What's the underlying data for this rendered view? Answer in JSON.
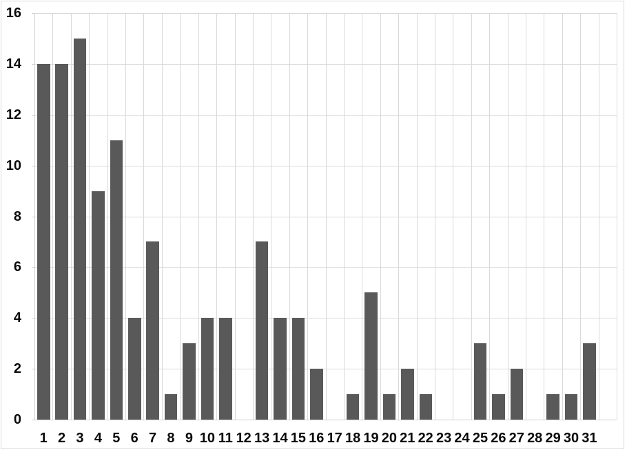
{
  "chart_data": {
    "type": "bar",
    "title": "",
    "xlabel": "",
    "ylabel": "",
    "categories": [
      "1",
      "2",
      "3",
      "4",
      "5",
      "6",
      "7",
      "8",
      "9",
      "10",
      "11",
      "12",
      "13",
      "14",
      "15",
      "16",
      "17",
      "18",
      "19",
      "20",
      "21",
      "22",
      "23",
      "24",
      "25",
      "26",
      "27",
      "28",
      "29",
      "30",
      "31"
    ],
    "values": [
      14,
      14,
      15,
      9,
      11,
      4,
      7,
      1,
      3,
      4,
      4,
      0,
      7,
      4,
      4,
      2,
      0,
      1,
      5,
      1,
      2,
      1,
      0,
      0,
      3,
      1,
      2,
      0,
      1,
      1,
      3
    ],
    "ylim": [
      0,
      16
    ],
    "yticks": [
      0,
      2,
      4,
      6,
      8,
      10,
      12,
      14,
      16
    ],
    "x_slots": 32,
    "grid": "both",
    "legend_position": "none"
  },
  "style": {
    "bar_color": "#595959",
    "gridline_color": "#d9d9d9",
    "axis_line_color": "#cfcfcf",
    "label_color": "#0a0a0a",
    "background_color": "#ffffff",
    "border_color": "#d9d9d9"
  }
}
